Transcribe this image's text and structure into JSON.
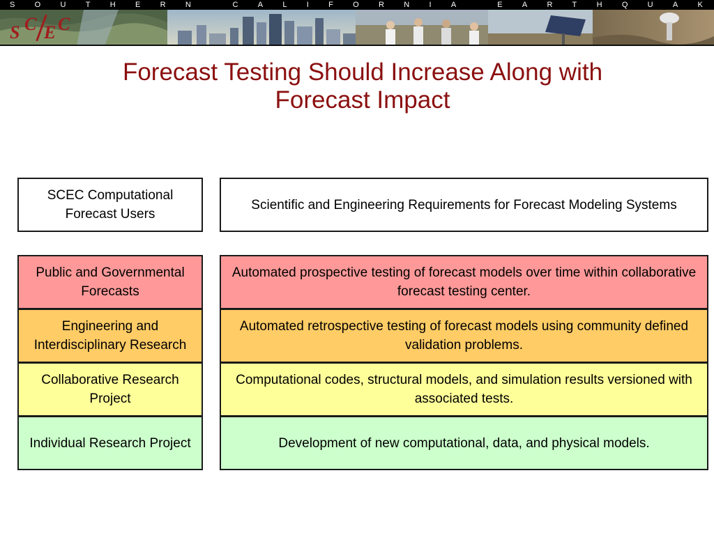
{
  "banner": {
    "tagline": "SOUTHERN CALIFORNIA EARTHQUAKE CENTER",
    "logo": {
      "text": "SCEC",
      "letters": [
        "S",
        "C",
        "E",
        "C"
      ],
      "color": "#a01e1e"
    }
  },
  "title": {
    "line1": "Forecast Testing Should Increase Along with",
    "line2": "Forecast Impact",
    "color": "#8b0f0f"
  },
  "table": {
    "header_left": "SCEC Computational Forecast Users",
    "header_right": "Scientific and Engineering Requirements for Forecast Modeling Systems",
    "rows": [
      {
        "left": "Public and Governmental Forecasts",
        "right": "Automated prospective testing of forecast models over time within collaborative forecast testing center.",
        "color": "#ff9999"
      },
      {
        "left": "Engineering and Interdisciplinary Research",
        "right": "Automated retrospective testing of forecast models using community defined validation problems.",
        "color": "#ffcc66"
      },
      {
        "left": "Collaborative Research Project",
        "right": "Computational codes, structural models, and simulation results versioned with associated tests.",
        "color": "#ffff99"
      },
      {
        "left": "Individual Research Project",
        "right": "Development of new computational, data, and physical models.",
        "color": "#ccffcc"
      }
    ]
  }
}
